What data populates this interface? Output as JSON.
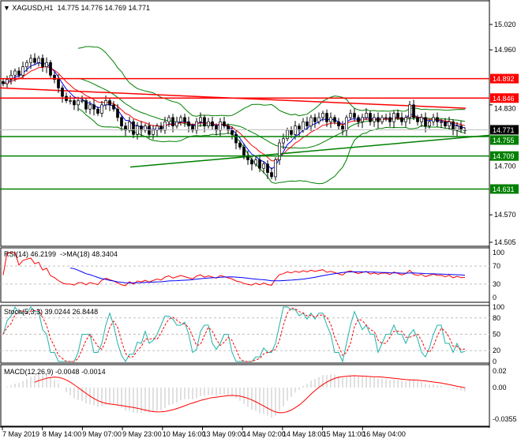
{
  "header": {
    "symbol": "XAGUSD,H1",
    "ohlc": "14.775 14.776 14.769 14.771"
  },
  "rsi": {
    "label": "RSI(14) 46.2199  ->MA(18) 48.3404",
    "ticks": [
      "100",
      "70",
      "30",
      "0"
    ]
  },
  "stoch": {
    "label": "Stoch(5,3,3) 39.0244 26.8448",
    "ticks": [
      "100",
      "80",
      "50",
      "20",
      "0"
    ]
  },
  "macd": {
    "label": "MACD(12,26,9) -0.0048 -0.0014",
    "ticks": [
      "0.02",
      "0.00",
      "-0.0355"
    ]
  },
  "chart_data": {
    "type": "candlestick",
    "price_ticks": [
      "15.020",
      "14.960",
      "14.830",
      "14.700",
      "14.570",
      "14.505"
    ],
    "ylim": [
      14.505,
      15.02
    ],
    "time_labels": [
      "7 May 2019",
      "8 May 14:00",
      "9 May 07:00",
      "9 May 23:00",
      "10 May 16:00",
      "13 May 09:00",
      "14 May 02:00",
      "14 May 18:00",
      "15 May 11:00",
      "16 May 04:00"
    ],
    "closes": [
      14.88,
      14.89,
      14.9,
      14.91,
      14.9,
      14.92,
      14.93,
      14.94,
      14.93,
      14.94,
      14.92,
      14.93,
      14.9,
      14.89,
      14.87,
      14.85,
      14.84,
      14.84,
      14.83,
      14.84,
      14.84,
      14.82,
      14.83,
      14.82,
      14.81,
      14.83,
      14.84,
      14.83,
      14.82,
      14.8,
      14.78,
      14.77,
      14.79,
      14.76,
      14.78,
      14.77,
      14.78,
      14.76,
      14.77,
      14.78,
      14.77,
      14.79,
      14.8,
      14.78,
      14.79,
      14.8,
      14.79,
      14.78,
      14.77,
      14.79,
      14.8,
      14.78,
      14.79,
      14.78,
      14.77,
      14.79,
      14.78,
      14.77,
      14.76,
      14.74,
      14.73,
      14.71,
      14.7,
      14.69,
      14.7,
      14.68,
      14.69,
      14.67,
      14.66,
      14.7,
      14.74,
      14.75,
      14.77,
      14.76,
      14.78,
      14.77,
      14.79,
      14.78,
      14.8,
      14.79,
      14.8,
      14.81,
      14.79,
      14.8,
      14.79,
      14.78,
      14.77,
      14.8,
      14.81,
      14.8,
      14.79,
      14.8,
      14.81,
      14.79,
      14.8,
      14.79,
      14.8,
      14.8,
      14.79,
      14.81,
      14.8,
      14.79,
      14.8,
      14.83,
      14.8,
      14.79,
      14.8,
      14.78,
      14.79,
      14.8,
      14.79,
      14.79,
      14.78,
      14.79,
      14.77,
      14.78,
      14.77,
      14.771
    ],
    "current_price": "14.771",
    "levels": [
      {
        "value": "14.892",
        "color": "#ff0000"
      },
      {
        "value": "14.846",
        "color": "#ff0000"
      },
      {
        "value": "14.755",
        "color": "#008000"
      },
      {
        "value": "14.709",
        "color": "#008000"
      },
      {
        "value": "14.631",
        "color": "#008000"
      }
    ],
    "colors": {
      "bollinger": "#008000",
      "ma_fast": "#0000ff",
      "ma_slow": "#ff0000",
      "rsi": "#ff0000",
      "rsi_ma": "#0000ff",
      "stoch_main": "#20b2aa",
      "stoch_signal": "#ff0000",
      "macd_hist": "#c0c0c0",
      "macd_signal": "#ff0000"
    }
  }
}
